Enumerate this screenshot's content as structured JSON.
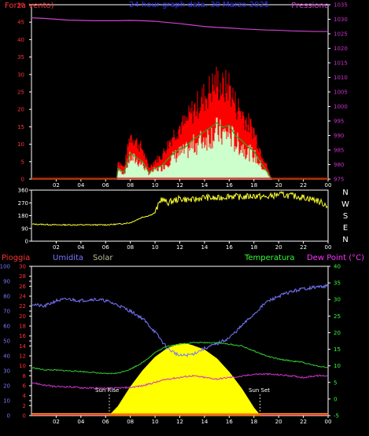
{
  "panel1": {
    "title": "24 hour graph data. 30 Marzo 2025",
    "left_label": "Forza vento)",
    "right_label": "Pressione",
    "left_ticks": [
      "0",
      "5",
      "10",
      "15",
      "20",
      "25",
      "30",
      "35",
      "40",
      "45",
      "50"
    ],
    "right_ticks": [
      "975",
      "980",
      "985",
      "990",
      "995",
      "1000",
      "1005",
      "1010",
      "1015",
      "1020",
      "1025",
      "1030",
      "1035"
    ],
    "x_ticks": [
      "02",
      "04",
      "06",
      "08",
      "10",
      "12",
      "14",
      "16",
      "18",
      "20",
      "22",
      "00"
    ]
  },
  "panel2": {
    "y_ticks": [
      "0",
      "90",
      "180",
      "270",
      "360"
    ],
    "x_ticks": [
      "02",
      "04",
      "06",
      "08",
      "10",
      "12",
      "14",
      "16",
      "18",
      "20",
      "22",
      "00"
    ],
    "compass": [
      "N",
      "W",
      "S",
      "E",
      "N"
    ]
  },
  "panel3": {
    "labels": {
      "rain": "Pioggia",
      "humidity": "Umidita",
      "solar": "Solar",
      "temperature": "Temperatura",
      "dewpoint": "Dew Point (°C)",
      "sunrise": "Sun Rise",
      "sunset": "Sun Set"
    },
    "humidity_ticks": [
      "0",
      "10",
      "20",
      "30",
      "40",
      "50",
      "60",
      "70",
      "80",
      "90",
      "100"
    ],
    "rain_ticks": [
      "0",
      "2",
      "4",
      "6",
      "8",
      "10",
      "12",
      "14",
      "16",
      "18",
      "20",
      "22",
      "24",
      "26",
      "28",
      "30"
    ],
    "temp_ticks": [
      "-5",
      "0",
      "5",
      "10",
      "15",
      "20",
      "25",
      "30",
      "35",
      "40"
    ],
    "x_ticks": [
      "02",
      "04",
      "06",
      "08",
      "10",
      "12",
      "14",
      "16",
      "18",
      "20",
      "22",
      "00"
    ]
  },
  "colors": {
    "frame": "#ffffff",
    "wind_gust": "#ff0000",
    "wind_avg": "#ccffcc",
    "wind_green": "#22aa22",
    "pressure": "#cc44cc",
    "direction": "#ffff33",
    "humidity": "#7777ff",
    "temperature": "#33cc33",
    "dewpoint": "#cc33cc",
    "solar": "#ffff00",
    "rain_axis": "#ff3333",
    "temp_axis": "#33ff33",
    "title": "#3333ff"
  },
  "chart_data": [
    {
      "type": "line",
      "x_unit": "hour",
      "xlim": [
        0,
        24
      ],
      "series": [
        {
          "name": "Forza vento)",
          "axis": "left",
          "x": [
            0,
            6.9,
            7.0,
            7.5,
            8.0,
            8.5,
            9.0,
            9.5,
            10,
            10.5,
            11,
            11.5,
            12,
            12.5,
            13,
            13.5,
            14,
            14.5,
            15,
            15.5,
            16,
            16.5,
            17,
            17.5,
            18,
            18.5,
            19,
            19.3,
            19.5,
            24
          ],
          "y": [
            0,
            0,
            5,
            3,
            12,
            10,
            8,
            3,
            5,
            6,
            9,
            12,
            14,
            15,
            18,
            20,
            22,
            24,
            26,
            24,
            25,
            20,
            18,
            15,
            13,
            8,
            4,
            1,
            0,
            0
          ]
        },
        {
          "name": "Pressione",
          "axis": "right",
          "x": [
            0,
            1,
            2,
            3,
            4,
            5,
            6,
            7,
            8,
            9,
            10,
            11,
            12,
            13,
            14,
            15,
            16,
            17,
            18,
            19,
            20,
            21,
            22,
            23,
            24
          ],
          "y": [
            1030.5,
            1030.3,
            1030.0,
            1029.7,
            1029.6,
            1029.5,
            1029.5,
            1029.5,
            1029.6,
            1029.5,
            1029.3,
            1028.9,
            1028.5,
            1028.0,
            1027.5,
            1027.2,
            1027.0,
            1026.7,
            1026.5,
            1026.3,
            1026.2,
            1026.0,
            1025.9,
            1025.8,
            1025.8
          ]
        }
      ],
      "ylim_left": [
        0,
        50
      ],
      "ylim_right": [
        975,
        1035
      ]
    },
    {
      "type": "line",
      "x_unit": "hour",
      "xlim": [
        0,
        24
      ],
      "series": [
        {
          "name": "direction",
          "x": [
            0,
            1,
            2,
            3,
            4,
            5,
            6,
            7,
            8,
            8.5,
            9,
            9.5,
            10,
            10.5,
            11,
            12,
            13,
            14,
            15,
            16,
            17,
            18,
            19,
            20,
            21,
            22,
            23,
            24
          ],
          "y": [
            120,
            118,
            115,
            115,
            115,
            115,
            115,
            120,
            130,
            150,
            170,
            180,
            200,
            300,
            270,
            300,
            290,
            310,
            300,
            320,
            310,
            320,
            310,
            330,
            320,
            310,
            290,
            250
          ]
        }
      ],
      "ylim": [
        0,
        360
      ]
    },
    {
      "type": "area",
      "x_unit": "hour",
      "xlim": [
        0,
        24
      ],
      "series": [
        {
          "name": "Umidita",
          "axis": "humidity",
          "x": [
            0,
            1,
            2,
            3,
            4,
            5,
            6,
            7,
            8,
            9,
            10,
            11,
            12,
            13,
            14,
            15,
            16,
            17,
            18,
            19,
            20,
            21,
            22,
            23,
            24
          ],
          "y": [
            75,
            73,
            77,
            78,
            77,
            78,
            77,
            74,
            70,
            65,
            56,
            45,
            40,
            41,
            45,
            48,
            52,
            60,
            68,
            76,
            80,
            83,
            85,
            86,
            87
          ]
        },
        {
          "name": "Temperatura",
          "axis": "temp",
          "x": [
            0,
            1,
            2,
            3,
            4,
            5,
            6,
            7,
            8,
            9,
            10,
            11,
            12,
            13,
            14,
            15,
            16,
            17,
            18,
            19,
            20,
            21,
            22,
            23,
            24
          ],
          "y": [
            9.5,
            8.8,
            8.7,
            8.5,
            8.3,
            8.0,
            7.6,
            7.8,
            9.0,
            11.0,
            14.0,
            16.0,
            16.5,
            17.0,
            17.0,
            17.0,
            16.5,
            16.0,
            14.5,
            13.0,
            12.0,
            11.5,
            11.0,
            10.0,
            9.5
          ]
        },
        {
          "name": "Dew Point (°C)",
          "axis": "temp",
          "x": [
            0,
            1,
            2,
            3,
            4,
            5,
            6,
            7,
            8,
            9,
            10,
            11,
            12,
            13,
            14,
            15,
            16,
            17,
            18,
            19,
            20,
            21,
            22,
            23,
            24
          ],
          "y": [
            5.0,
            4.2,
            3.7,
            3.7,
            3.4,
            3.3,
            3.2,
            3.3,
            3.5,
            4.0,
            5.0,
            6.0,
            6.5,
            7.0,
            6.5,
            6.0,
            6.5,
            6.8,
            7.5,
            7.5,
            7.3,
            7.0,
            6.5,
            7.0,
            7.0
          ]
        },
        {
          "name": "Solar",
          "axis": "humidity",
          "x": [
            6.3,
            7,
            8,
            9,
            10,
            11,
            12,
            12.5,
            13,
            14,
            15,
            16,
            17,
            18,
            18.5
          ],
          "y": [
            0,
            6,
            19,
            30,
            39,
            45,
            48,
            48,
            47,
            44,
            38,
            29,
            18,
            5,
            0
          ]
        },
        {
          "name": "Pioggia",
          "axis": "rain",
          "x": [
            0,
            24
          ],
          "y": [
            0,
            0
          ]
        }
      ],
      "ylim_humidity": [
        0,
        100
      ],
      "ylim_rain": [
        0,
        30
      ],
      "ylim_temp": [
        -5,
        40
      ]
    }
  ]
}
